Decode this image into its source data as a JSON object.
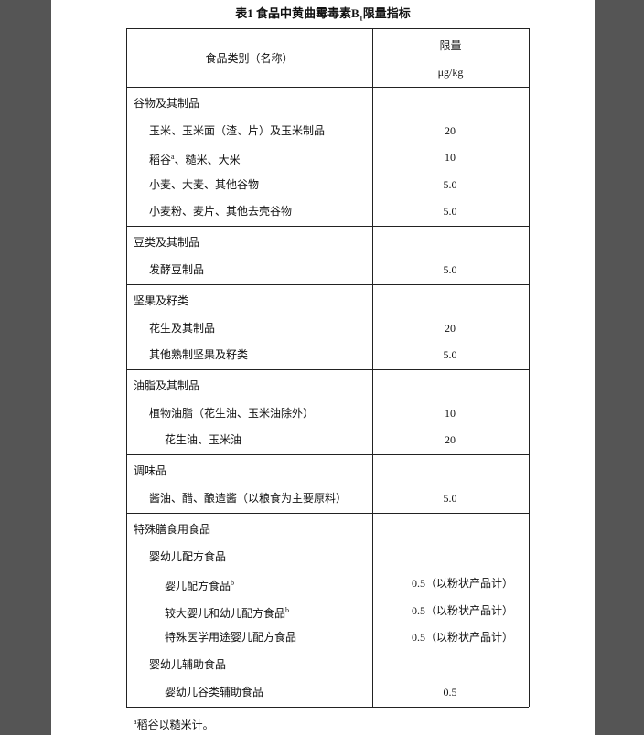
{
  "title": {
    "prefix": "表1 食品中黄曲霉毒素B",
    "subscript": "1",
    "suffix": "限量指标"
  },
  "header": {
    "category": "食品类别（名称）",
    "limit": "限量",
    "unit": "μg/kg"
  },
  "groups": [
    {
      "name": "谷物及其制品",
      "items": [
        {
          "name": "玉米、玉米面（渣、片）及玉米制品",
          "value": "20"
        },
        {
          "name": "稻谷",
          "note": "a",
          "name_rest": "、糙米、大米",
          "value": "10"
        },
        {
          "name": "小麦、大麦、其他谷物",
          "value": "5.0"
        },
        {
          "name": "小麦粉、麦片、其他去壳谷物",
          "value": "5.0"
        }
      ]
    },
    {
      "name": "豆类及其制品",
      "items": [
        {
          "name": "发酵豆制品",
          "value": "5.0"
        }
      ]
    },
    {
      "name": "坚果及籽类",
      "items": [
        {
          "name": "花生及其制品",
          "value": "20"
        },
        {
          "name": "其他熟制坚果及籽类",
          "value": "5.0"
        }
      ]
    },
    {
      "name": "油脂及其制品",
      "items": [
        {
          "name": "植物油脂（花生油、玉米油除外）",
          "value": "10",
          "items": [
            {
              "name": "花生油、玉米油",
              "value": "20"
            }
          ]
        }
      ]
    },
    {
      "name": "调味品",
      "items": [
        {
          "name": "酱油、醋、酿造酱（以粮食为主要原料）",
          "value": "5.0"
        }
      ]
    },
    {
      "name": "特殊膳食用食品",
      "items": [
        {
          "name": "婴幼儿配方食品",
          "items": [
            {
              "name": "婴儿配方食品",
              "note": "b",
              "value": "0.5（以粉状产品计）"
            },
            {
              "name": "较大婴儿和幼儿配方食品",
              "note": "b",
              "value": "0.5（以粉状产品计）"
            },
            {
              "name": "特殊医学用途婴儿配方食品",
              "value": "0.5（以粉状产品计）"
            }
          ]
        },
        {
          "name": "婴幼儿辅助食品",
          "items": [
            {
              "name": "婴幼儿谷类辅助食品",
              "value": "0.5"
            }
          ]
        }
      ]
    }
  ],
  "footnote": {
    "mark": "a",
    "text": "稻谷以糙米计。"
  }
}
